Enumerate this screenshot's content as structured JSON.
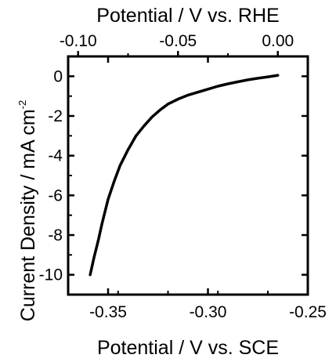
{
  "chart_data": {
    "type": "line",
    "xlabel_bottom": "Potential / V vs. SCE",
    "xlabel_top": "Potential / V vs. RHE",
    "ylabel": "Current Density / mA cm",
    "ylabel_superscript": "-2",
    "xlim": [
      -0.37,
      -0.25
    ],
    "ylim": [
      -11,
      1
    ],
    "x_ticks": [
      -0.35,
      -0.3,
      -0.25
    ],
    "x_tick_labels": [
      "-0.35",
      "-0.30",
      "-0.25"
    ],
    "x_top_ticks": [
      -0.1,
      -0.05,
      0.0
    ],
    "x_top_tick_labels": [
      "-0.10",
      "-0.05",
      "0.00"
    ],
    "rhe_offset": 0.265,
    "y_ticks": [
      0,
      -2,
      -4,
      -6,
      -8,
      -10
    ],
    "y_tick_labels": [
      "0",
      "-2",
      "-4",
      "-6",
      "-8",
      "-10"
    ],
    "grid": false,
    "series": [
      {
        "x": [
          -0.359,
          -0.357,
          -0.355,
          -0.353,
          -0.35,
          -0.347,
          -0.344,
          -0.34,
          -0.336,
          -0.332,
          -0.328,
          -0.324,
          -0.32,
          -0.315,
          -0.31,
          -0.305,
          -0.3,
          -0.295,
          -0.29,
          -0.285,
          -0.28,
          -0.275,
          -0.27,
          -0.265
        ],
        "y": [
          -10.0,
          -9.1,
          -8.3,
          -7.4,
          -6.2,
          -5.3,
          -4.5,
          -3.7,
          -3.0,
          -2.5,
          -2.05,
          -1.7,
          -1.4,
          -1.15,
          -0.95,
          -0.8,
          -0.65,
          -0.5,
          -0.38,
          -0.28,
          -0.18,
          -0.1,
          -0.03,
          0.05
        ]
      }
    ],
    "line_color": "#000000"
  }
}
